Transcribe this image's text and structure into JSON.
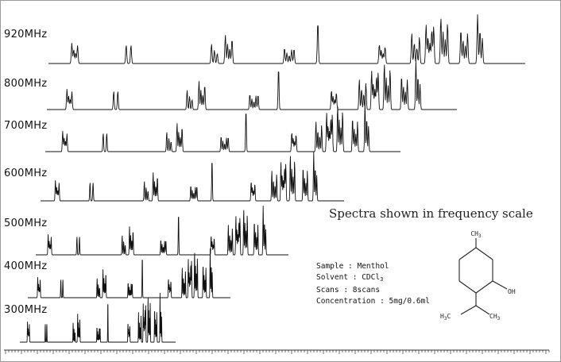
{
  "chart_data": {
    "type": "line",
    "title": "",
    "annotation": "Spectra shown in frequency scale",
    "xlabel": "",
    "ylabel": "",
    "grid": false,
    "series": [
      {
        "name": "920MHz"
      },
      {
        "name": "800MHz"
      },
      {
        "name": "700MHz"
      },
      {
        "name": "600MHz"
      },
      {
        "name": "500MHz"
      },
      {
        "name": "400MHz"
      },
      {
        "name": "300MHz"
      }
    ]
  },
  "sample_info": {
    "sample": "Sample : Menthol",
    "solvent_prefix": "Solvent : CDCl",
    "solvent_sub": "3",
    "scans": "Scans : 8scans",
    "concentration": "Concentration : 5mg/0.6ml"
  },
  "molecule": {
    "top_label": "CH",
    "top_sub": "3",
    "oh_label": "OH",
    "left_label": "H",
    "left_sub": "3",
    "left_c": "C",
    "right_label": "CH",
    "right_sub": "3"
  }
}
